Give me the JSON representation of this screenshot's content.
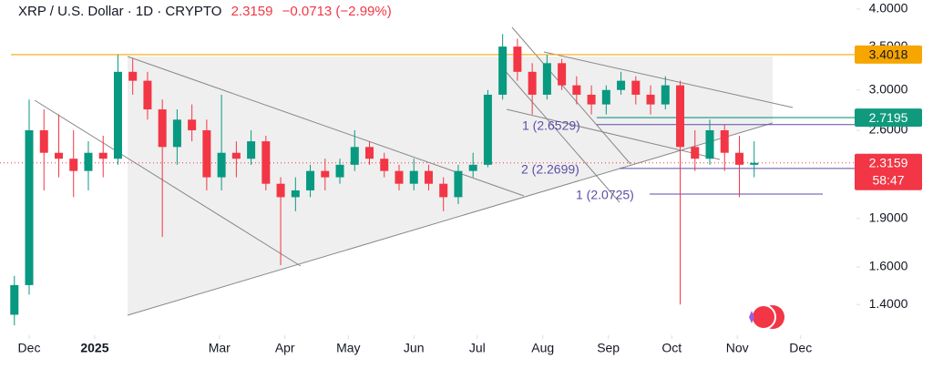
{
  "header": {
    "symbol": "XRP / U.S. Dollar · 1D · CRYPTO",
    "price": "2.3159",
    "change": "−0.0713 (−2.99%)"
  },
  "chart_data": {
    "type": "candlestick",
    "x": [
      -7,
      0,
      7,
      14,
      21,
      28,
      35,
      42,
      49,
      56,
      63,
      70,
      77,
      84,
      91,
      98,
      105,
      112,
      119,
      126,
      133,
      140,
      147,
      154,
      161,
      168,
      175,
      182,
      189,
      196,
      203,
      210,
      217,
      224,
      231,
      238,
      245,
      252,
      259,
      266,
      273,
      280,
      287,
      294,
      301,
      308,
      315,
      322,
      329,
      336,
      343
    ],
    "open": [
      1.35,
      1.5,
      2.6,
      2.4,
      2.35,
      2.25,
      2.4,
      2.35,
      3.2,
      3.1,
      2.8,
      2.45,
      2.7,
      2.6,
      2.2,
      2.4,
      2.35,
      2.5,
      2.15,
      2.05,
      2.1,
      2.25,
      2.2,
      2.3,
      2.45,
      2.35,
      2.25,
      2.15,
      2.25,
      2.15,
      2.05,
      2.25,
      2.3,
      2.95,
      3.5,
      3.2,
      2.95,
      3.3,
      3.05,
      2.95,
      2.85,
      3.0,
      3.1,
      2.95,
      2.85,
      3.05,
      2.45,
      2.35,
      2.6,
      2.4,
      2.3
    ],
    "high": [
      1.55,
      2.9,
      2.8,
      2.75,
      2.6,
      2.5,
      2.55,
      3.4,
      3.35,
      3.2,
      2.9,
      2.8,
      2.85,
      2.7,
      2.95,
      2.5,
      2.6,
      2.55,
      2.2,
      2.2,
      2.3,
      2.35,
      2.35,
      2.6,
      2.5,
      2.4,
      2.3,
      2.35,
      2.3,
      2.2,
      2.3,
      2.4,
      3.0,
      3.66,
      3.6,
      3.3,
      3.4,
      3.35,
      3.15,
      3.05,
      3.05,
      3.2,
      3.15,
      3.05,
      3.15,
      3.1,
      2.6,
      2.7,
      2.65,
      2.55,
      2.5
    ],
    "low": [
      1.3,
      1.45,
      2.1,
      2.2,
      2.05,
      2.1,
      2.2,
      2.3,
      2.95,
      2.7,
      1.78,
      2.3,
      2.5,
      2.1,
      2.1,
      2.2,
      2.3,
      2.1,
      1.61,
      1.95,
      2.05,
      2.1,
      2.15,
      2.25,
      2.3,
      2.2,
      2.1,
      2.1,
      2.1,
      1.95,
      2.0,
      2.2,
      2.28,
      2.9,
      3.1,
      2.75,
      2.9,
      3.0,
      2.85,
      2.75,
      2.75,
      2.95,
      2.85,
      2.75,
      2.8,
      1.4,
      2.25,
      2.3,
      2.25,
      2.05,
      2.2
    ],
    "close": [
      1.5,
      2.6,
      2.4,
      2.35,
      2.25,
      2.4,
      2.35,
      3.2,
      3.1,
      2.8,
      2.45,
      2.7,
      2.6,
      2.2,
      2.4,
      2.35,
      2.5,
      2.15,
      2.05,
      2.1,
      2.25,
      2.2,
      2.3,
      2.45,
      2.35,
      2.25,
      2.15,
      2.25,
      2.15,
      2.05,
      2.25,
      2.3,
      2.95,
      3.5,
      3.2,
      2.95,
      3.3,
      3.05,
      2.95,
      2.85,
      3.0,
      3.1,
      2.95,
      2.85,
      3.05,
      2.45,
      2.35,
      2.6,
      2.4,
      2.3,
      2.3159
    ],
    "up_color": "#089981",
    "down_color": "#f23645",
    "xlim": [
      -13.8,
      391.4
    ],
    "ylim": [
      1.255,
      4.13
    ],
    "log_scale": true,
    "xticks": [
      {
        "value": 0,
        "label": "Dec"
      },
      {
        "value": 31,
        "label": "2025"
      },
      {
        "value": 90,
        "label": "Mar"
      },
      {
        "value": 121,
        "label": "Apr"
      },
      {
        "value": 151,
        "label": "May"
      },
      {
        "value": 182,
        "label": "Jun"
      },
      {
        "value": 212,
        "label": "Jul"
      },
      {
        "value": 243,
        "label": "Aug"
      },
      {
        "value": 274,
        "label": "Sep"
      },
      {
        "value": 304,
        "label": "Oct"
      },
      {
        "value": 335,
        "label": "Nov"
      },
      {
        "value": 365,
        "label": "Dec"
      }
    ],
    "yticks": [
      {
        "value": 4,
        "label": "4.0000"
      },
      {
        "value": 3.5,
        "label": "3.5000"
      },
      {
        "value": 3,
        "label": "3.0000"
      },
      {
        "value": 2.6,
        "label": "2.6000"
      },
      {
        "value": 1.9,
        "label": "1.9000"
      },
      {
        "value": 1.6,
        "label": "1.6000"
      },
      {
        "value": 1.4,
        "label": "1.4000"
      }
    ],
    "levels": [
      {
        "value": 3.4018,
        "color": "#f7a600"
      },
      {
        "value": 2.7195,
        "color": "#0f9a7e"
      }
    ],
    "fib_levels": [
      {
        "label": "1 (2.6529)",
        "value": 2.6529
      },
      {
        "label": "2 (2.2699)",
        "value": 2.2699
      },
      {
        "label": "1 (2.0725)",
        "value": 2.0725
      }
    ],
    "last_price": {
      "value": 2.3159,
      "countdown": "58:47",
      "color": "#f23645"
    }
  }
}
